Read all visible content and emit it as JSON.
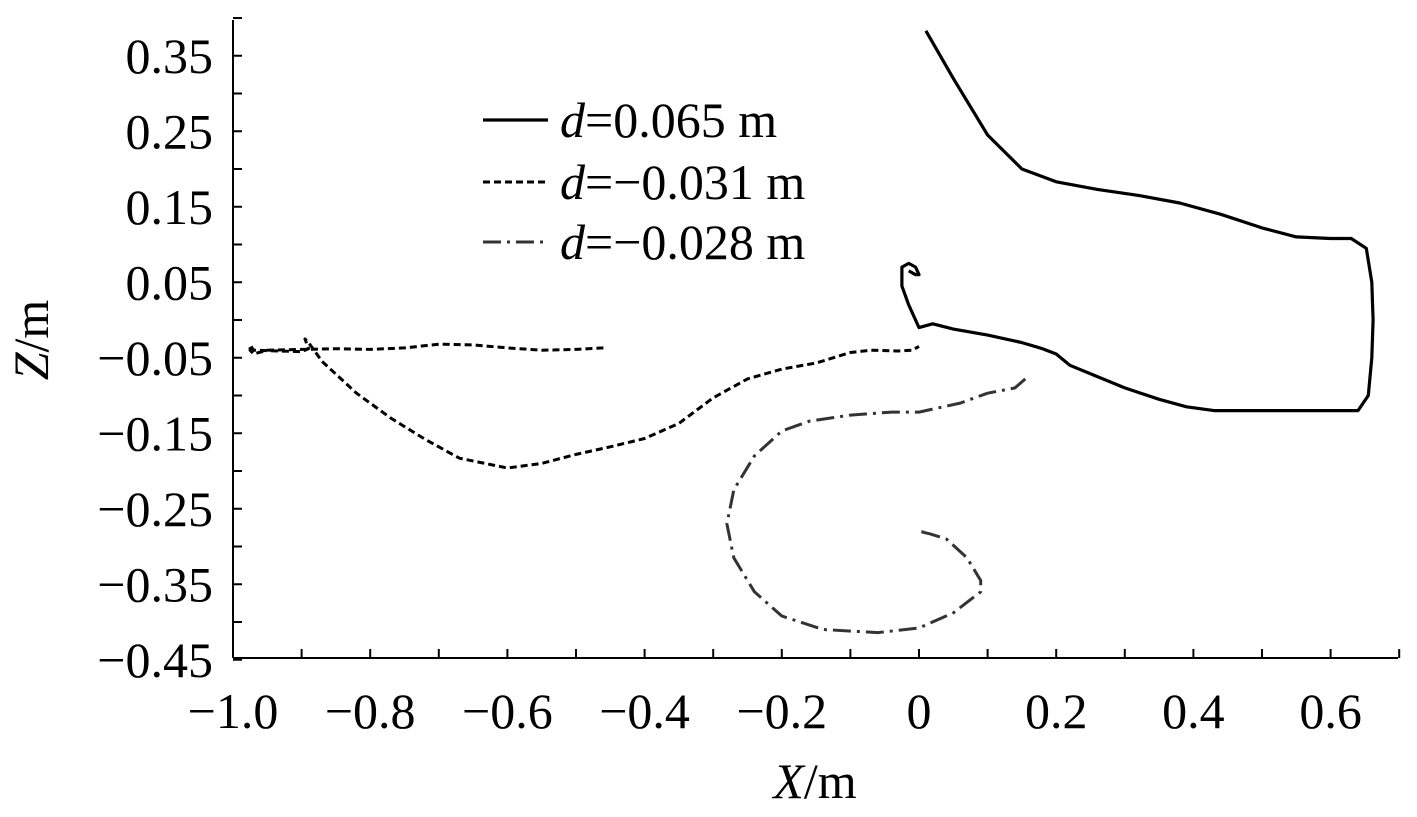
{
  "chart_data": {
    "type": "line",
    "title": "",
    "xlabel": {
      "var": "X",
      "unit": "/m"
    },
    "ylabel": {
      "var": "Z",
      "unit": "/m"
    },
    "xlim": [
      -1.0,
      0.7
    ],
    "ylim": [
      -0.45,
      0.4
    ],
    "x_ticks": [
      -1.0,
      -0.8,
      -0.6,
      -0.4,
      -0.2,
      0,
      0.2,
      0.4,
      0.6
    ],
    "x_tick_labels": [
      "−1.0",
      "−0.8",
      "−0.6",
      "−0.4",
      "−0.2",
      "0",
      "0.2",
      "0.4",
      "0.6"
    ],
    "x_minor_ticks": [
      -0.9,
      -0.7,
      -0.5,
      -0.3,
      -0.1,
      0.1,
      0.3,
      0.5,
      0.7
    ],
    "y_ticks": [
      0.35,
      0.25,
      0.15,
      0.05,
      -0.05,
      -0.15,
      -0.25,
      -0.35,
      -0.45
    ],
    "y_tick_labels": [
      "0.35",
      "0.25",
      "0.15",
      "0.05",
      "−0.05",
      "−0.15",
      "−0.25",
      "−0.35",
      "−0.45"
    ],
    "y_minor_ticks": [
      0.4,
      0.3,
      0.2,
      0.1,
      0.0,
      -0.1,
      -0.2,
      -0.3,
      -0.4
    ],
    "grid": false,
    "legend_position": "top-left-center",
    "series": [
      {
        "name": {
          "var": "d",
          "text": "=0.065 m"
        },
        "style": "solid",
        "color": "#000000",
        "points": [
          [
            0.01,
            0.383
          ],
          [
            0.05,
            0.32
          ],
          [
            0.1,
            0.245
          ],
          [
            0.15,
            0.2
          ],
          [
            0.2,
            0.183
          ],
          [
            0.26,
            0.173
          ],
          [
            0.32,
            0.165
          ],
          [
            0.38,
            0.155
          ],
          [
            0.44,
            0.14
          ],
          [
            0.5,
            0.122
          ],
          [
            0.55,
            0.11
          ],
          [
            0.6,
            0.108
          ],
          [
            0.63,
            0.108
          ],
          [
            0.652,
            0.095
          ],
          [
            0.66,
            0.05
          ],
          [
            0.662,
            0.0
          ],
          [
            0.66,
            -0.05
          ],
          [
            0.655,
            -0.1
          ],
          [
            0.64,
            -0.12
          ],
          [
            0.6,
            -0.12
          ],
          [
            0.55,
            -0.12
          ],
          [
            0.5,
            -0.12
          ],
          [
            0.45,
            -0.12
          ],
          [
            0.43,
            -0.12
          ],
          [
            0.39,
            -0.115
          ],
          [
            0.35,
            -0.105
          ],
          [
            0.3,
            -0.09
          ],
          [
            0.26,
            -0.075
          ],
          [
            0.22,
            -0.06
          ],
          [
            0.2,
            -0.045
          ],
          [
            0.18,
            -0.038
          ],
          [
            0.15,
            -0.03
          ],
          [
            0.1,
            -0.02
          ],
          [
            0.05,
            -0.012
          ],
          [
            0.02,
            -0.005
          ],
          [
            0.0,
            -0.01
          ],
          [
            -0.015,
            0.02
          ],
          [
            -0.025,
            0.045
          ],
          [
            -0.025,
            0.07
          ],
          [
            -0.015,
            0.075
          ],
          [
            -0.005,
            0.07
          ],
          [
            0.0,
            0.06
          ],
          [
            -0.005,
            0.06
          ],
          [
            -0.015,
            0.065
          ]
        ]
      },
      {
        "name": {
          "var": "d",
          "text": "=−0.031 m"
        },
        "style": "dashed",
        "color": "#000000",
        "points": [
          [
            -0.46,
            -0.037
          ],
          [
            -0.5,
            -0.039
          ],
          [
            -0.55,
            -0.04
          ],
          [
            -0.6,
            -0.037
          ],
          [
            -0.65,
            -0.033
          ],
          [
            -0.7,
            -0.032
          ],
          [
            -0.75,
            -0.037
          ],
          [
            -0.8,
            -0.039
          ],
          [
            -0.85,
            -0.038
          ],
          [
            -0.9,
            -0.039
          ],
          [
            -0.95,
            -0.04
          ],
          [
            -0.97,
            -0.045
          ],
          [
            -0.975,
            -0.04
          ],
          [
            -0.975,
            -0.033
          ],
          [
            -0.97,
            -0.04
          ],
          [
            -0.9,
            -0.042
          ],
          [
            -0.89,
            -0.038
          ],
          [
            -0.895,
            -0.025
          ],
          [
            -0.89,
            -0.03
          ],
          [
            -0.87,
            -0.055
          ],
          [
            -0.82,
            -0.097
          ],
          [
            -0.77,
            -0.13
          ],
          [
            -0.72,
            -0.158
          ],
          [
            -0.67,
            -0.183
          ],
          [
            -0.6,
            -0.196
          ],
          [
            -0.55,
            -0.19
          ],
          [
            -0.5,
            -0.178
          ],
          [
            -0.45,
            -0.168
          ],
          [
            -0.4,
            -0.157
          ],
          [
            -0.35,
            -0.137
          ],
          [
            -0.3,
            -0.103
          ],
          [
            -0.25,
            -0.078
          ],
          [
            -0.2,
            -0.065
          ],
          [
            -0.15,
            -0.057
          ],
          [
            -0.1,
            -0.043
          ],
          [
            -0.07,
            -0.04
          ],
          [
            -0.03,
            -0.041
          ],
          [
            -0.01,
            -0.04
          ],
          [
            0.0,
            -0.035
          ]
        ]
      },
      {
        "name": {
          "var": "d",
          "text": "=−0.028 m"
        },
        "style": "dashdot",
        "color": "#333333",
        "points": [
          [
            0.155,
            -0.078
          ],
          [
            0.14,
            -0.09
          ],
          [
            0.1,
            -0.097
          ],
          [
            0.06,
            -0.11
          ],
          [
            0.0,
            -0.122
          ],
          [
            -0.04,
            -0.122
          ],
          [
            -0.1,
            -0.126
          ],
          [
            -0.16,
            -0.134
          ],
          [
            -0.2,
            -0.147
          ],
          [
            -0.24,
            -0.18
          ],
          [
            -0.27,
            -0.225
          ],
          [
            -0.28,
            -0.27
          ],
          [
            -0.27,
            -0.315
          ],
          [
            -0.24,
            -0.36
          ],
          [
            -0.2,
            -0.392
          ],
          [
            -0.14,
            -0.41
          ],
          [
            -0.06,
            -0.414
          ],
          [
            0.0,
            -0.408
          ],
          [
            0.05,
            -0.388
          ],
          [
            0.09,
            -0.36
          ],
          [
            0.09,
            -0.345
          ],
          [
            0.07,
            -0.315
          ],
          [
            0.04,
            -0.29
          ],
          [
            0.015,
            -0.283
          ],
          [
            0.0,
            -0.28
          ],
          [
            0.015,
            -0.282
          ]
        ]
      }
    ]
  }
}
